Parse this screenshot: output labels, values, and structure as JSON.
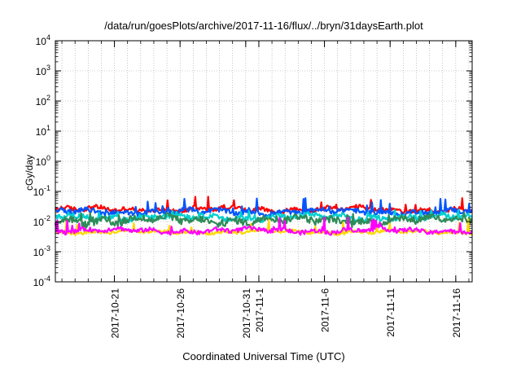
{
  "chart_data": {
    "type": "line",
    "title": "/data/run/goesPlots/archive/2017-11-16/flux/../bryn/31daysEarth.plot",
    "xlabel": "Coordinated Universal Time (UTC)",
    "ylabel": "cGy/day",
    "y_scale": "log",
    "ylim": [
      0.0001,
      10000
    ],
    "xlim": [
      "2017-10-16T12:00",
      "2017-11-17T06:00"
    ],
    "y_ticks": [
      {
        "value": 0.0001,
        "base": "10",
        "exp": "-4"
      },
      {
        "value": 0.001,
        "base": "10",
        "exp": "-3"
      },
      {
        "value": 0.01,
        "base": "10",
        "exp": "-2"
      },
      {
        "value": 0.1,
        "base": "10",
        "exp": "-1"
      },
      {
        "value": 1,
        "base": "10",
        "exp": "0"
      },
      {
        "value": 10,
        "base": "10",
        "exp": "1"
      },
      {
        "value": 100,
        "base": "10",
        "exp": "2"
      },
      {
        "value": 1000,
        "base": "10",
        "exp": "3"
      },
      {
        "value": 10000,
        "base": "10",
        "exp": "4"
      }
    ],
    "x_ticks": [
      {
        "date": "2017-10-21",
        "label": "2017-10-21"
      },
      {
        "date": "2017-10-26",
        "label": "2017-10-26"
      },
      {
        "date": "2017-10-31",
        "label": "2017-10-31"
      },
      {
        "date": "2017-11-01",
        "label": "2017-11-1"
      },
      {
        "date": "2017-11-06",
        "label": "2017-11-6"
      },
      {
        "date": "2017-11-11",
        "label": "2017-11-11"
      },
      {
        "date": "2017-11-16",
        "label": "2017-11-16"
      }
    ],
    "grid": true,
    "series": [
      {
        "color": "#ff0000",
        "typical": 0.025,
        "low": 0.017,
        "high": 0.075
      },
      {
        "color": "#0055ff",
        "typical": 0.021,
        "low": 0.014,
        "high": 0.06
      },
      {
        "color": "#00d0d0",
        "typical": 0.014,
        "low": 0.009,
        "high": 0.025
      },
      {
        "color": "#2e8b57",
        "typical": 0.011,
        "low": 0.006,
        "high": 0.02
      },
      {
        "color": "#ffd700",
        "typical": 0.0045,
        "low": 0.0035,
        "high": 0.012
      },
      {
        "color": "#ff00ff",
        "typical": 0.005,
        "low": 0.0035,
        "high": 0.014
      }
    ]
  }
}
